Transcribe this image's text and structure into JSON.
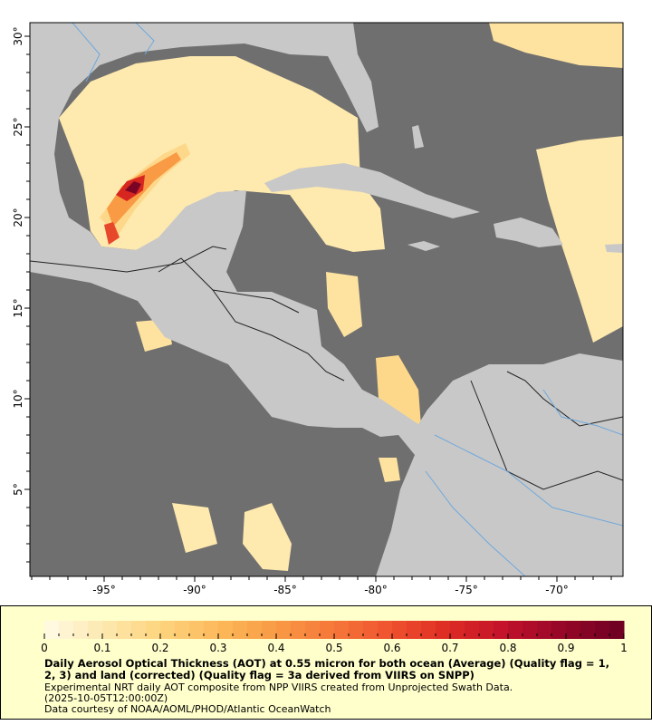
{
  "map": {
    "lon_ticks": [
      "-95°",
      "-90°",
      "-85°",
      "-80°",
      "-75°",
      "-70°"
    ],
    "lat_ticks": [
      "30°",
      "25°",
      "20°",
      "15°",
      "10°",
      "5°"
    ],
    "colors": {
      "ocean": "#6f6f6f",
      "land": "#c8c8c8",
      "rivers": "#6fa8dc",
      "borders": "#222222",
      "background": "#ffffff"
    }
  },
  "legend": {
    "colorbar_ticks": [
      "0",
      "0.1",
      "0.2",
      "0.3",
      "0.4",
      "0.5",
      "0.6",
      "0.7",
      "0.8",
      "0.9",
      "1"
    ],
    "colormap": [
      "#fffbe6",
      "#fde9b0",
      "#fdd47e",
      "#fcb95a",
      "#f99a45",
      "#f67739",
      "#ef512d",
      "#dd2a24",
      "#c0102b",
      "#930627",
      "#6c0022"
    ],
    "title": "Daily Aerosol Optical Thickness (AOT) at 0.55 micron for both ocean (Average) (Quality flag = 1, 2, 3) and land (corrected) (Quality flag = 3a derived from VIIRS on SNPP)",
    "line1": "Experimental NRT daily AOT composite from NPP VIIRS created from Unprojected Swath Data.",
    "line2": "(2025-10-05T12:00:00Z)",
    "line3": "Data courtesy of NOAA/AOML/PHOD/Atlantic OceanWatch",
    "background": "#ffffcc"
  }
}
